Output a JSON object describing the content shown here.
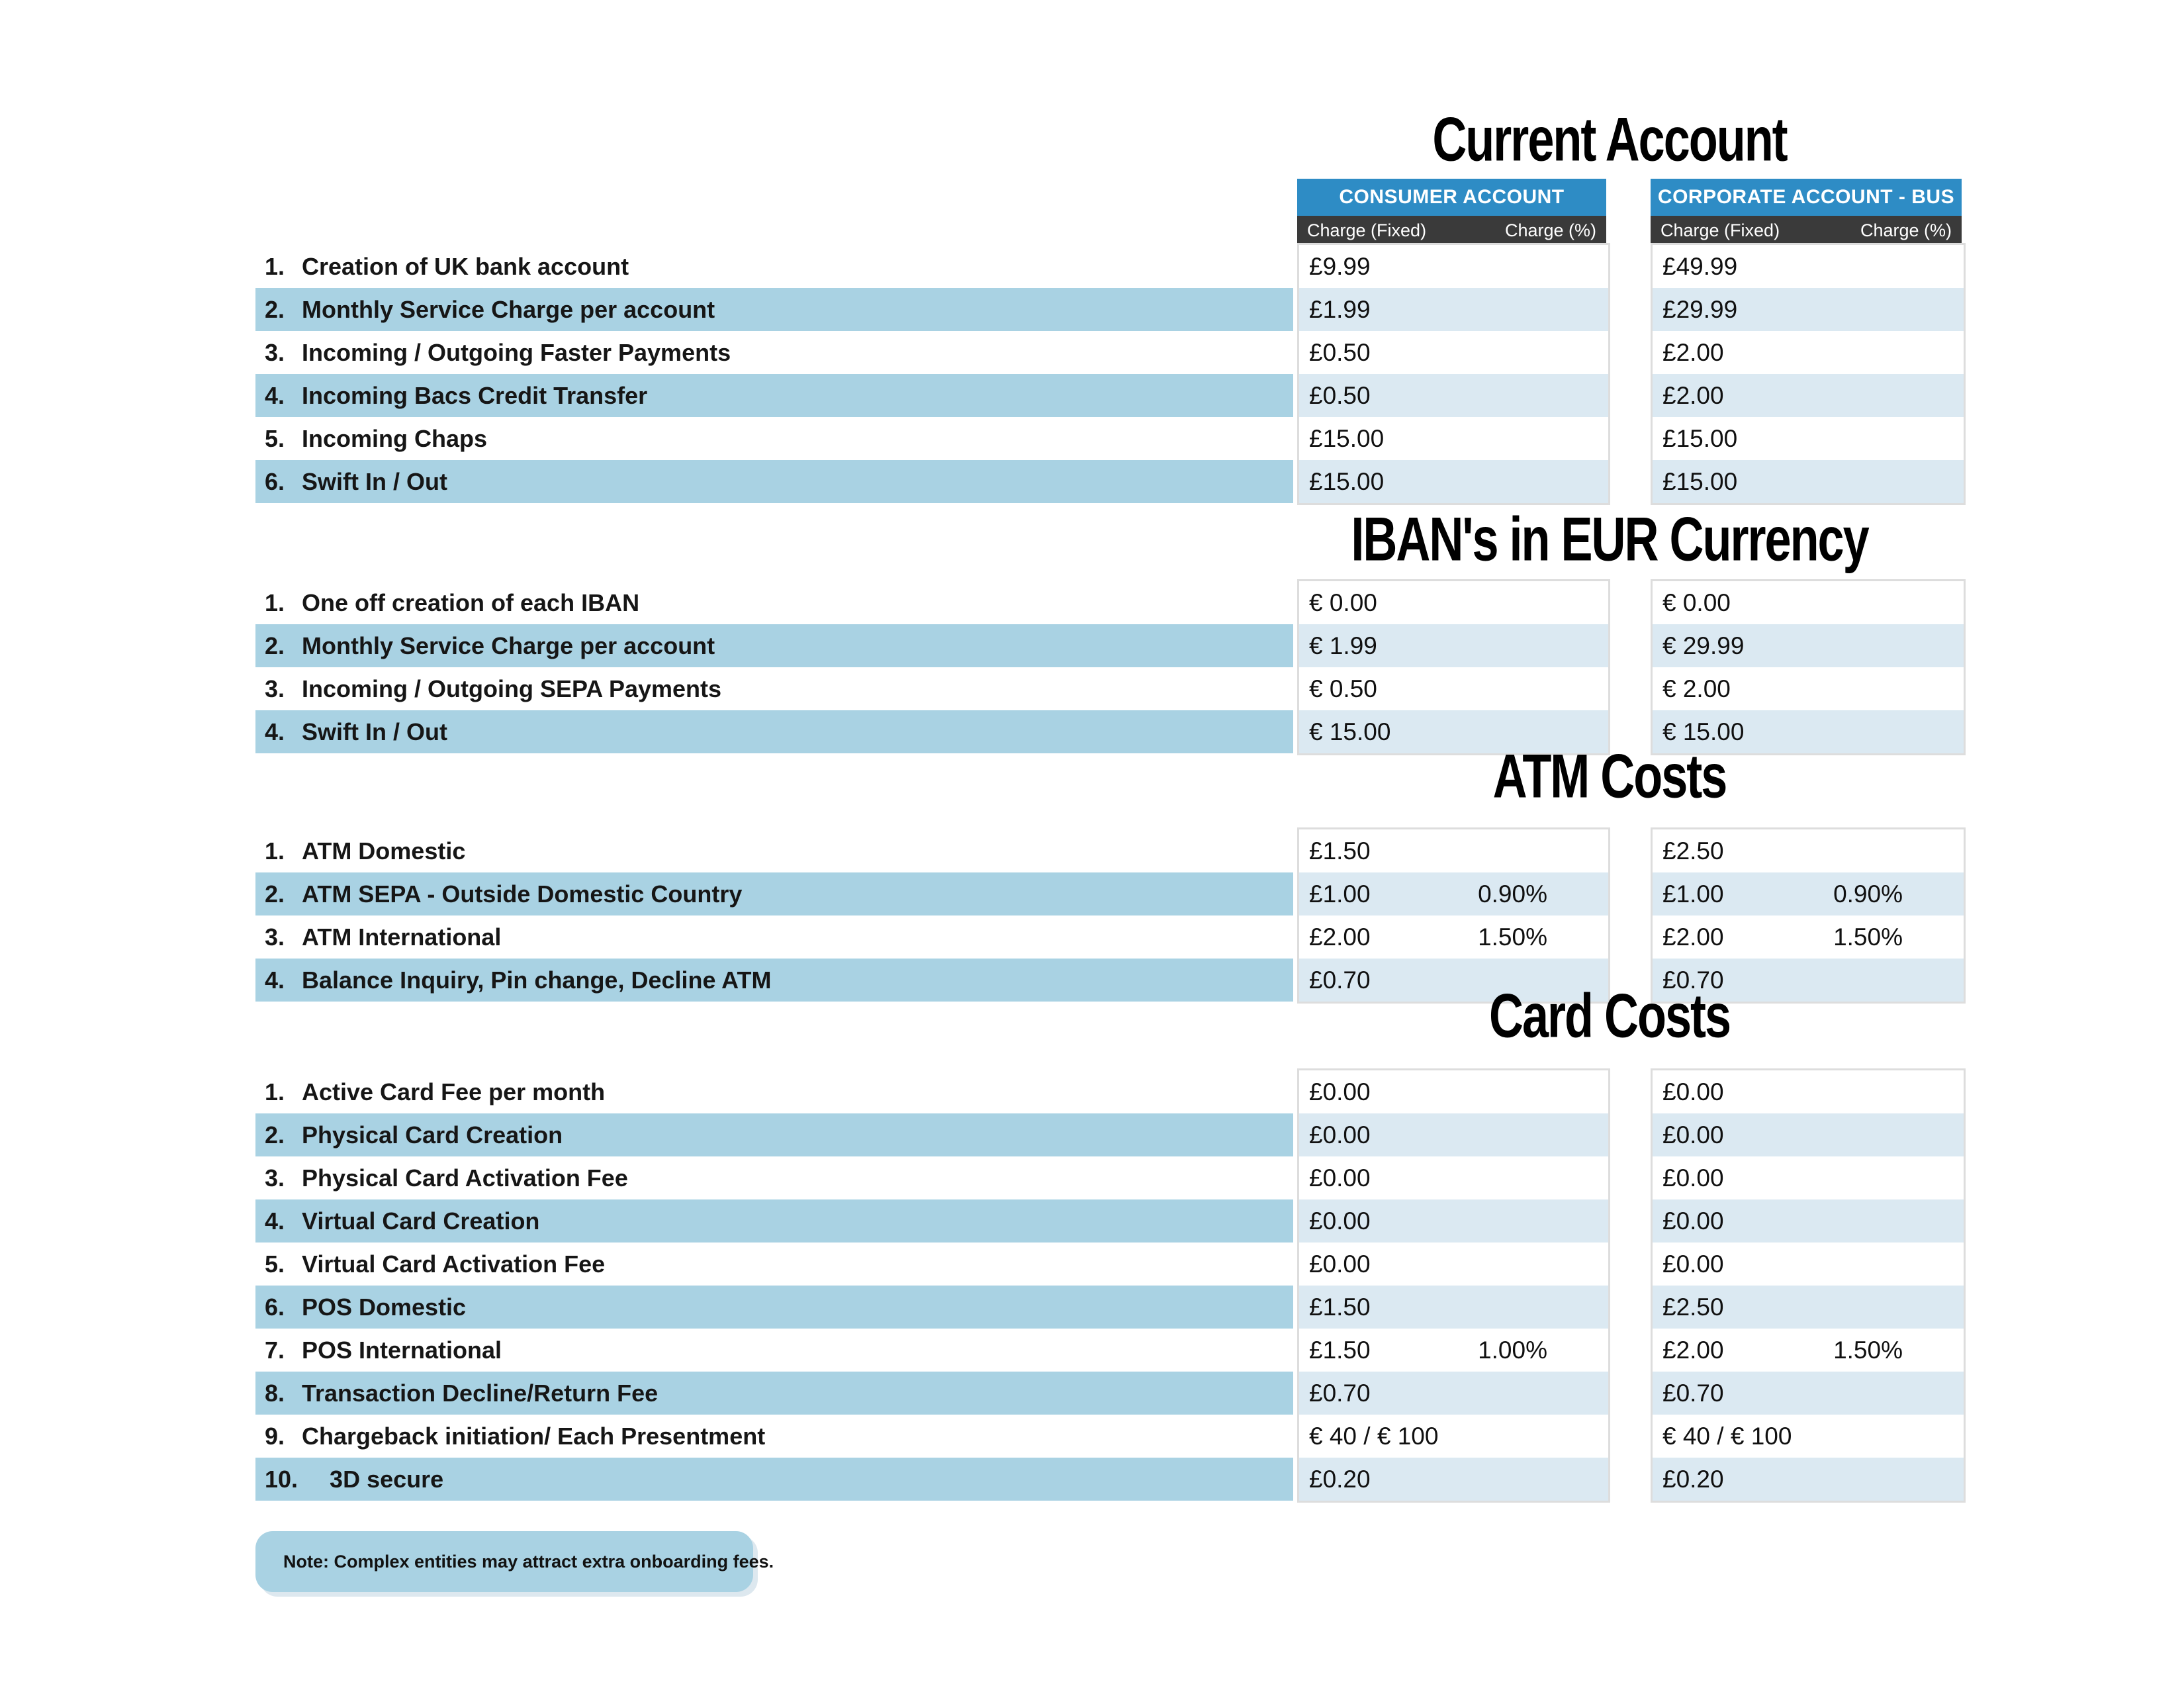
{
  "colors": {
    "header_blue": "#2e8cc5",
    "header_dark": "#3a3a3a",
    "stripe_strong": "#a9d2e3",
    "stripe_light": "#dbe9f2",
    "block_border": "#dddddd"
  },
  "column_headers": {
    "consumer": {
      "title": "CONSUMER ACCOUNT",
      "sub_fixed": "Charge (Fixed)",
      "sub_pct": "Charge (%)"
    },
    "corporate": {
      "title": "CORPORATE ACCOUNT - BUS",
      "sub_fixed": "Charge (Fixed)",
      "sub_pct": "Charge (%)"
    }
  },
  "sections": [
    {
      "title": "Current Account",
      "rows": [
        {
          "num": "1.",
          "label": "Creation of UK bank account",
          "consumer_fixed": "£9.99",
          "consumer_pct": "",
          "corporate_fixed": "£49.99",
          "corporate_pct": ""
        },
        {
          "num": "2.",
          "label": "Monthly Service Charge per account",
          "consumer_fixed": "£1.99",
          "consumer_pct": "",
          "corporate_fixed": "£29.99",
          "corporate_pct": ""
        },
        {
          "num": "3.",
          "label": "Incoming / Outgoing Faster Payments",
          "consumer_fixed": "£0.50",
          "consumer_pct": "",
          "corporate_fixed": "£2.00",
          "corporate_pct": ""
        },
        {
          "num": "4.",
          "label": "Incoming Bacs Credit Transfer",
          "consumer_fixed": "£0.50",
          "consumer_pct": "",
          "corporate_fixed": "£2.00",
          "corporate_pct": ""
        },
        {
          "num": "5.",
          "label": "Incoming Chaps",
          "consumer_fixed": "£15.00",
          "consumer_pct": "",
          "corporate_fixed": "£15.00",
          "corporate_pct": ""
        },
        {
          "num": "6.",
          "label": "Swift In / Out",
          "consumer_fixed": "£15.00",
          "consumer_pct": "",
          "corporate_fixed": "£15.00",
          "corporate_pct": ""
        }
      ]
    },
    {
      "title": "IBAN's in EUR Currency",
      "rows": [
        {
          "num": "1.",
          "label": "One off creation of each IBAN",
          "consumer_fixed": "€ 0.00",
          "consumer_pct": "",
          "corporate_fixed": "€ 0.00",
          "corporate_pct": ""
        },
        {
          "num": "2.",
          "label": "Monthly Service Charge per account",
          "consumer_fixed": "€ 1.99",
          "consumer_pct": "",
          "corporate_fixed": "€ 29.99",
          "corporate_pct": ""
        },
        {
          "num": "3.",
          "label": "Incoming / Outgoing SEPA Payments",
          "consumer_fixed": "€ 0.50",
          "consumer_pct": "",
          "corporate_fixed": "€ 2.00",
          "corporate_pct": ""
        },
        {
          "num": "4.",
          "label": "Swift In / Out",
          "consumer_fixed": "€ 15.00",
          "consumer_pct": "",
          "corporate_fixed": "€ 15.00",
          "corporate_pct": ""
        }
      ]
    },
    {
      "title": "ATM Costs",
      "rows": [
        {
          "num": "1.",
          "label": "ATM Domestic",
          "consumer_fixed": "£1.50",
          "consumer_pct": "",
          "corporate_fixed": "£2.50",
          "corporate_pct": ""
        },
        {
          "num": "2.",
          "label": "ATM SEPA - Outside Domestic Country",
          "consumer_fixed": "£1.00",
          "consumer_pct": "0.90%",
          "corporate_fixed": "£1.00",
          "corporate_pct": "0.90%"
        },
        {
          "num": "3.",
          "label": "ATM International",
          "consumer_fixed": "£2.00",
          "consumer_pct": "1.50%",
          "corporate_fixed": "£2.00",
          "corporate_pct": "1.50%"
        },
        {
          "num": "4.",
          "label": "Balance Inquiry, Pin change, Decline ATM",
          "consumer_fixed": "£0.70",
          "consumer_pct": "",
          "corporate_fixed": "£0.70",
          "corporate_pct": ""
        }
      ]
    },
    {
      "title": "Card Costs",
      "rows": [
        {
          "num": "1.",
          "label": "Active Card Fee per month",
          "consumer_fixed": "£0.00",
          "consumer_pct": "",
          "corporate_fixed": "£0.00",
          "corporate_pct": ""
        },
        {
          "num": "2.",
          "label": "Physical Card Creation",
          "consumer_fixed": "£0.00",
          "consumer_pct": "",
          "corporate_fixed": "£0.00",
          "corporate_pct": ""
        },
        {
          "num": "3.",
          "label": "Physical Card Activation Fee",
          "consumer_fixed": "£0.00",
          "consumer_pct": "",
          "corporate_fixed": "£0.00",
          "corporate_pct": ""
        },
        {
          "num": "4.",
          "label": "Virtual Card Creation",
          "consumer_fixed": "£0.00",
          "consumer_pct": "",
          "corporate_fixed": "£0.00",
          "corporate_pct": ""
        },
        {
          "num": "5.",
          "label": "Virtual Card Activation Fee",
          "consumer_fixed": "£0.00",
          "consumer_pct": "",
          "corporate_fixed": "£0.00",
          "corporate_pct": ""
        },
        {
          "num": "6.",
          "label": "POS Domestic",
          "consumer_fixed": "£1.50",
          "consumer_pct": "",
          "corporate_fixed": "£2.50",
          "corporate_pct": ""
        },
        {
          "num": "7.",
          "label": "POS International",
          "consumer_fixed": "£1.50",
          "consumer_pct": "1.00%",
          "corporate_fixed": "£2.00",
          "corporate_pct": "1.50%"
        },
        {
          "num": "8.",
          "label": "Transaction Decline/Return Fee",
          "consumer_fixed": "£0.70",
          "consumer_pct": "",
          "corporate_fixed": "£0.70",
          "corporate_pct": ""
        },
        {
          "num": "9.",
          "label": "Chargeback initiation/ Each Presentment",
          "consumer_fixed": "€ 40 / € 100",
          "consumer_pct": "",
          "corporate_fixed": "€ 40 / € 100",
          "corporate_pct": ""
        },
        {
          "num": "10.",
          "label": "3D secure",
          "consumer_fixed": "£0.20",
          "consumer_pct": "",
          "corporate_fixed": "£0.20",
          "corporate_pct": ""
        }
      ]
    }
  ],
  "note": "Note: Complex entities may attract extra onboarding fees."
}
